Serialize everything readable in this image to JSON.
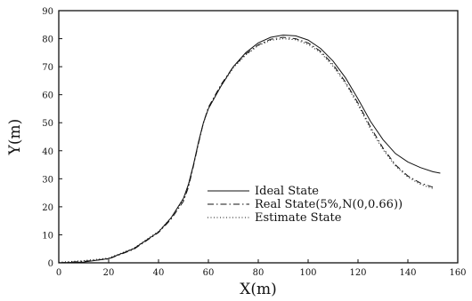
{
  "chart_data": {
    "type": "line",
    "xlabel": "X(m)",
    "ylabel": "Y(m)",
    "xlim": [
      0,
      160
    ],
    "ylim": [
      0,
      90
    ],
    "xticks": [
      0,
      20,
      40,
      60,
      80,
      100,
      120,
      140,
      160
    ],
    "yticks": [
      0,
      10,
      20,
      30,
      40,
      50,
      60,
      70,
      80,
      90
    ],
    "grid": false,
    "legend_position": "center-right",
    "series": [
      {
        "name": "Ideal State",
        "dash": "solid",
        "x": [
          0,
          10,
          20,
          30,
          40,
          45,
          50,
          52,
          54,
          56,
          58,
          60,
          65,
          70,
          75,
          80,
          85,
          90,
          95,
          100,
          105,
          110,
          115,
          120,
          125,
          130,
          135,
          140,
          145,
          150,
          153
        ],
        "y": [
          0,
          0.3,
          1.5,
          5,
          11,
          16,
          23,
          28,
          35,
          43,
          50,
          55,
          63,
          70,
          75,
          78.5,
          80.5,
          81.3,
          81,
          79.5,
          76.5,
          72,
          66,
          58.5,
          50.5,
          44,
          39,
          36,
          34,
          32.5,
          32
        ]
      },
      {
        "name": "Real State(5%,N(0,0.66))",
        "dash": "dashdot",
        "x": [
          0,
          10,
          20,
          30,
          40,
          45,
          50,
          52,
          54,
          56,
          58,
          60,
          65,
          70,
          75,
          80,
          85,
          90,
          95,
          100,
          105,
          110,
          115,
          120,
          125,
          130,
          135,
          140,
          145,
          150
        ],
        "y": [
          0,
          0.5,
          1.4,
          4.8,
          10.8,
          15.5,
          22,
          27,
          34.5,
          42.5,
          50,
          55.5,
          63.5,
          70,
          74.5,
          77.8,
          79.8,
          80.5,
          80,
          78.5,
          75.5,
          70.8,
          64.5,
          57,
          48.5,
          41,
          35,
          31,
          28.5,
          27
        ]
      },
      {
        "name": "Estimate State",
        "dash": "dotted",
        "x": [
          0,
          10,
          20,
          30,
          40,
          45,
          50,
          52,
          54,
          56,
          58,
          60,
          65,
          70,
          75,
          80,
          85,
          90,
          95,
          100,
          105,
          110,
          115,
          120,
          125,
          130,
          135,
          140,
          145,
          150
        ],
        "y": [
          0.2,
          0.8,
          1.7,
          5.2,
          11.2,
          16,
          22.5,
          27.5,
          34.8,
          42.8,
          49.8,
          55,
          63,
          69.6,
          74.2,
          77.5,
          79.4,
          80,
          79.6,
          78,
          75,
          70.2,
          64,
          56.4,
          47.8,
          40.4,
          34.6,
          30.6,
          28,
          26.5
        ]
      }
    ]
  }
}
